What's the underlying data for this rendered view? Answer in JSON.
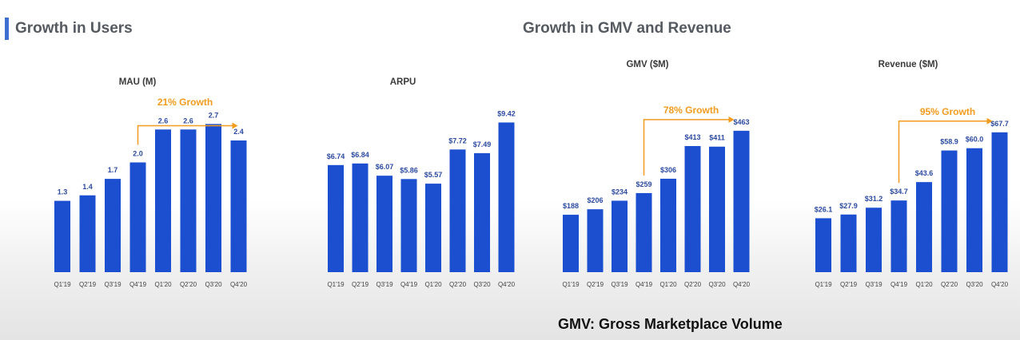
{
  "headings": {
    "users": "Growth in Users",
    "gmv_revenue": "Growth in GMV and Revenue"
  },
  "footnote": "GMV: Gross Marketplace Volume",
  "colors": {
    "bar": "#1b4fcf",
    "accent": "#f29b1e",
    "heading": "#555a61"
  },
  "chart_data": [
    {
      "id": "mau",
      "type": "bar",
      "title": "MAU (M)",
      "categories": [
        "Q1'19",
        "Q2'19",
        "Q3'19",
        "Q4'19",
        "Q1'20",
        "Q2'20",
        "Q3'20",
        "Q4'20"
      ],
      "values": [
        1.3,
        1.4,
        1.7,
        2.0,
        2.6,
        2.6,
        2.7,
        2.4
      ],
      "labels": [
        "1.3",
        "1.4",
        "1.7",
        "2.0",
        "2.6",
        "2.6",
        "2.7",
        "2.4"
      ],
      "ylim": [
        0,
        3.2
      ],
      "annotation": {
        "text": "21% Growth",
        "from_index": 3,
        "to_index": 7
      }
    },
    {
      "id": "arpu",
      "type": "bar",
      "title": "ARPU",
      "categories": [
        "Q1'19",
        "Q2'19",
        "Q3'19",
        "Q4'19",
        "Q1'20",
        "Q2'20",
        "Q3'20",
        "Q4'20"
      ],
      "values": [
        6.74,
        6.84,
        6.07,
        5.86,
        5.57,
        7.72,
        7.49,
        9.42
      ],
      "labels": [
        "$6.74",
        "$6.84",
        "$6.07",
        "$5.86",
        "$5.57",
        "$7.72",
        "$7.49",
        "$9.42"
      ],
      "ylim": [
        0,
        11.05
      ]
    },
    {
      "id": "gmv",
      "type": "bar",
      "title": "GMV ($M)",
      "categories": [
        "Q1'19",
        "Q2'19",
        "Q3'19",
        "Q4'19",
        "Q1'20",
        "Q2'20",
        "Q3'20",
        "Q4'20"
      ],
      "values": [
        188,
        206,
        234,
        259,
        306,
        413,
        411,
        463
      ],
      "labels": [
        "$188",
        "$206",
        "$234",
        "$259",
        "$306",
        "$413",
        "$411",
        "$463"
      ],
      "ylim": [
        0,
        575
      ],
      "annotation": {
        "text": "78% Growth",
        "from_index": 3,
        "to_index": 7
      }
    },
    {
      "id": "revenue",
      "type": "bar",
      "title": "Revenue ($M)",
      "categories": [
        "Q1'19",
        "Q2'19",
        "Q3'19",
        "Q4'19",
        "Q1'20",
        "Q2'20",
        "Q3'20",
        "Q4'20"
      ],
      "values": [
        26.1,
        27.9,
        31.2,
        34.7,
        43.6,
        58.9,
        60.0,
        67.7
      ],
      "labels": [
        "$26.1",
        "$27.9",
        "$31.2",
        "$34.7",
        "$43.6",
        "$58.9",
        "$60.0",
        "$67.7"
      ],
      "ylim": [
        0,
        85
      ],
      "annotation": {
        "text": "95% Growth",
        "from_index": 3,
        "to_index": 7
      }
    }
  ]
}
